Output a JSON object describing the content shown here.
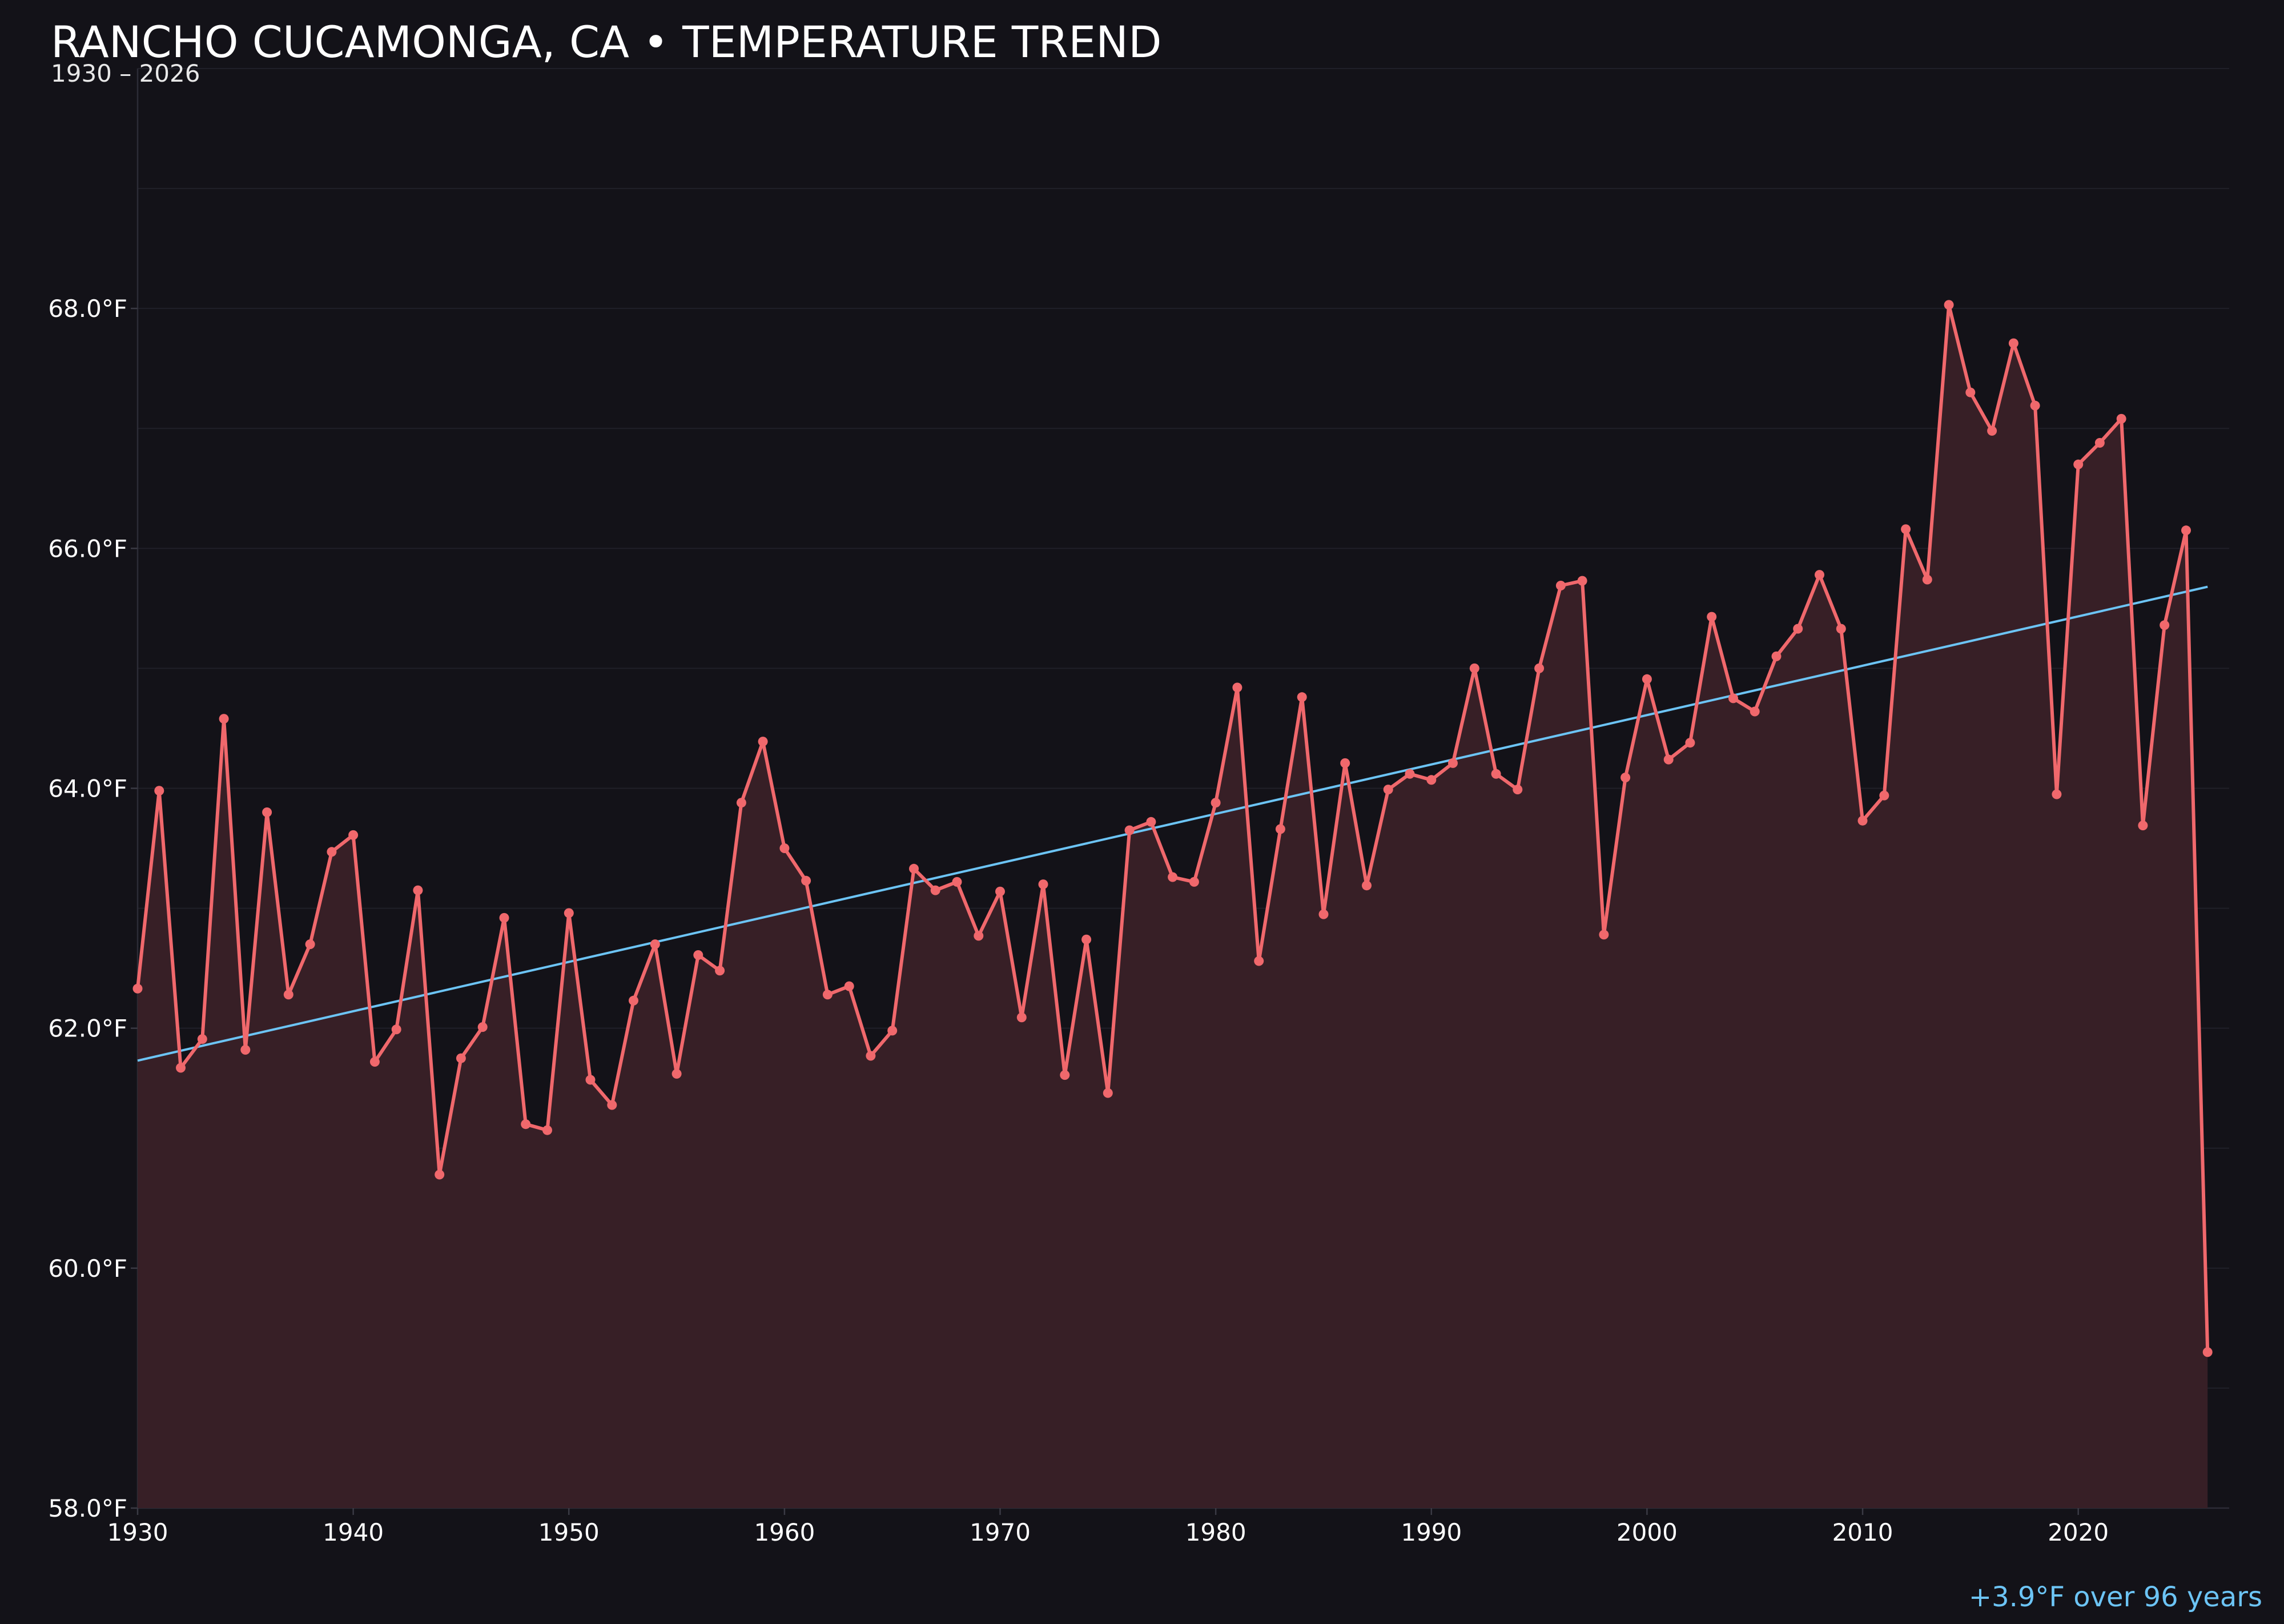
{
  "chart_data": {
    "type": "line",
    "title": "RANCHO CUCAMONGA, CA • TEMPERATURE TREND",
    "subtitle": "1930 – 2026",
    "xlabel": "",
    "ylabel": "",
    "xlim": [
      1930,
      2027
    ],
    "ylim": [
      58.0,
      70.0
    ],
    "x_ticks": [
      1930,
      1940,
      1950,
      1960,
      1970,
      1980,
      1990,
      2000,
      2010,
      2020
    ],
    "y_ticks": [
      58.0,
      60.0,
      62.0,
      64.0,
      66.0,
      68.0
    ],
    "y_tick_labels": [
      "58.0°F",
      "60.0°F",
      "62.0°F",
      "64.0°F",
      "66.0°F",
      "68.0°F"
    ],
    "grid": true,
    "series": [
      {
        "color": "#f0686c",
        "fill": "#371f26",
        "x": [
          1930,
          1931,
          1932,
          1933,
          1934,
          1935,
          1936,
          1937,
          1938,
          1939,
          1940,
          1941,
          1942,
          1943,
          1944,
          1945,
          1946,
          1947,
          1948,
          1949,
          1950,
          1951,
          1952,
          1953,
          1954,
          1955,
          1956,
          1957,
          1958,
          1959,
          1960,
          1961,
          1962,
          1963,
          1964,
          1965,
          1966,
          1967,
          1968,
          1969,
          1970,
          1971,
          1972,
          1973,
          1974,
          1975,
          1976,
          1977,
          1978,
          1979,
          1980,
          1981,
          1982,
          1983,
          1984,
          1985,
          1986,
          1987,
          1988,
          1989,
          1990,
          1991,
          1992,
          1993,
          1994,
          1995,
          1996,
          1997,
          1998,
          1999,
          2000,
          2001,
          2002,
          2003,
          2004,
          2005,
          2006,
          2007,
          2008,
          2009,
          2010,
          2011,
          2012,
          2013,
          2014,
          2015,
          2016,
          2017,
          2018,
          2019,
          2020,
          2021,
          2022,
          2023,
          2024,
          2025,
          2026
        ],
        "values": [
          62.33,
          63.98,
          61.67,
          61.91,
          64.58,
          61.82,
          63.8,
          62.28,
          62.7,
          63.47,
          63.61,
          61.72,
          61.99,
          63.15,
          60.78,
          61.75,
          62.01,
          62.92,
          61.2,
          61.15,
          62.96,
          61.57,
          61.36,
          62.23,
          62.7,
          61.62,
          62.61,
          62.48,
          63.88,
          64.39,
          63.5,
          63.23,
          62.28,
          62.35,
          61.77,
          61.98,
          63.33,
          63.15,
          63.22,
          62.77,
          63.14,
          62.09,
          63.2,
          61.61,
          62.74,
          61.46,
          63.65,
          63.72,
          63.26,
          63.22,
          63.88,
          64.84,
          62.56,
          63.66,
          64.76,
          62.95,
          64.21,
          63.19,
          63.99,
          64.12,
          64.07,
          64.21,
          65.0,
          64.12,
          63.99,
          65.0,
          65.69,
          65.73,
          62.78,
          64.09,
          64.91,
          64.24,
          64.38,
          65.43,
          64.75,
          64.64,
          65.1,
          65.33,
          65.78,
          65.33,
          63.73,
          63.94,
          66.16,
          65.74,
          68.03,
          67.3,
          66.98,
          67.71,
          67.19,
          63.95,
          66.7,
          66.88,
          67.08,
          63.69,
          65.36,
          66.15,
          59.3
        ]
      }
    ],
    "trend": {
      "color": "#6cc4f5",
      "x": [
        1930,
        2026
      ],
      "values": [
        61.73,
        65.68
      ]
    },
    "annotation": "+3.9°F over 96 years"
  }
}
